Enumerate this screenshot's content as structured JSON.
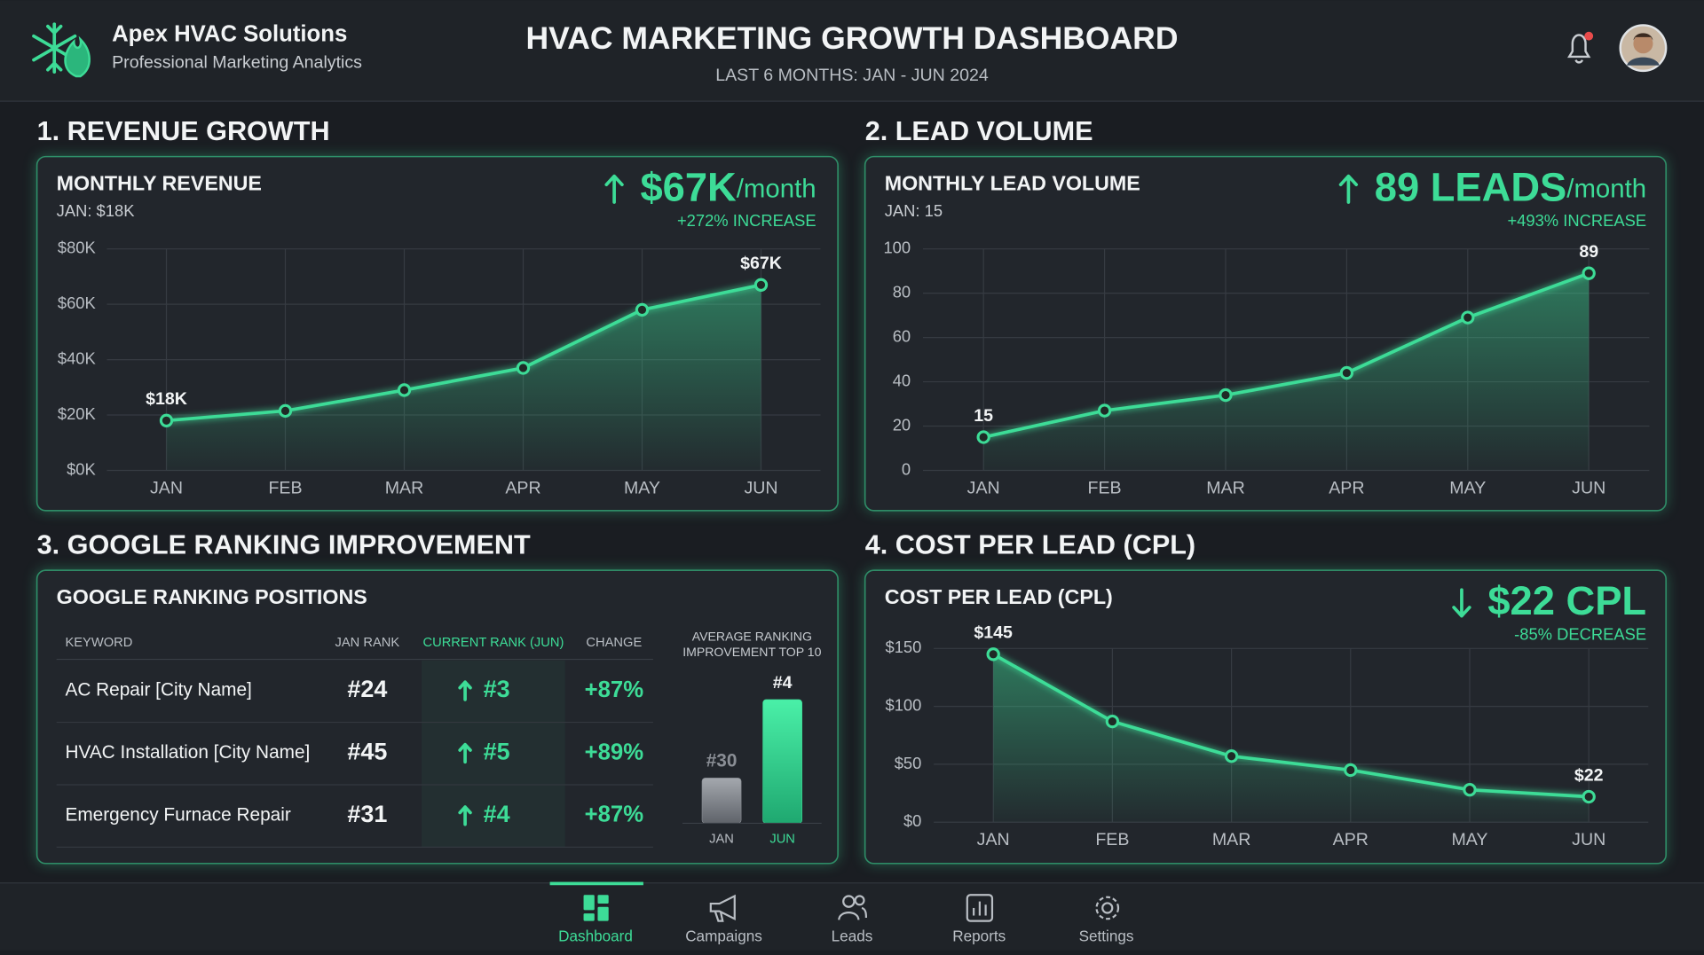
{
  "header": {
    "brand": "Apex HVAC Solutions",
    "tagline": "Professional Marketing Analytics",
    "title": "HVAC MARKETING GROWTH DASHBOARD",
    "subtitle": "LAST 6 MONTHS: JAN - JUN 2024"
  },
  "chart_data": [
    {
      "type": "line",
      "section": "1. REVENUE GROWTH",
      "title": "MONTHLY REVENUE",
      "subtitle": "JAN: $18K",
      "kpi": "$67K",
      "kpi_unit": "/month",
      "kpi_change": "+272% INCREASE",
      "trend": "up",
      "categories": [
        "JAN",
        "FEB",
        "MAR",
        "APR",
        "MAY",
        "JUN"
      ],
      "series": [
        {
          "color": "#3ddc97",
          "values": [
            18000,
            21500,
            29000,
            37000,
            58000,
            67000
          ],
          "value_labels": [
            "$18K",
            null,
            null,
            null,
            null,
            "$67K"
          ]
        }
      ],
      "ylim": [
        0,
        80000
      ],
      "yticks": [
        {
          "value": 0,
          "label": "$0K"
        },
        {
          "value": 20000,
          "label": "$20K"
        },
        {
          "value": 40000,
          "label": "$40K"
        },
        {
          "value": 60000,
          "label": "$60K"
        },
        {
          "value": 80000,
          "label": "$80K"
        }
      ],
      "grid": true
    },
    {
      "type": "line",
      "section": "2. LEAD VOLUME",
      "title": "MONTHLY LEAD VOLUME",
      "subtitle": "JAN: 15",
      "kpi": "89 LEADS",
      "kpi_unit": "/month",
      "kpi_change": "+493% INCREASE",
      "trend": "up",
      "categories": [
        "JAN",
        "FEB",
        "MAR",
        "APR",
        "MAY",
        "JUN"
      ],
      "series": [
        {
          "color": "#3ddc97",
          "values": [
            15,
            27,
            34,
            44,
            69,
            89
          ],
          "value_labels": [
            "15",
            null,
            null,
            null,
            null,
            "89"
          ]
        }
      ],
      "ylim": [
        0,
        100
      ],
      "yticks": [
        0,
        20,
        40,
        60,
        80,
        100
      ],
      "grid": true
    },
    {
      "type": "line",
      "section": "4. COST PER LEAD (CPL)",
      "title": "COST PER LEAD (CPL)",
      "kpi": "$22 CPL",
      "kpi_change": "-85% DECREASE",
      "trend": "down",
      "categories": [
        "JAN",
        "FEB",
        "MAR",
        "APR",
        "MAY",
        "JUN"
      ],
      "series": [
        {
          "color": "#3ddc97",
          "values": [
            145,
            87,
            57,
            45,
            28,
            22
          ],
          "value_labels": [
            "$145",
            null,
            null,
            null,
            null,
            "$22"
          ]
        }
      ],
      "ylim": [
        0,
        150
      ],
      "yticks": [
        {
          "value": 0,
          "label": "$0"
        },
        {
          "value": 50,
          "label": "$50"
        },
        {
          "value": 100,
          "label": "$100"
        },
        {
          "value": 150,
          "label": "$150"
        }
      ],
      "grid": true
    },
    {
      "type": "bar",
      "title": "AVERAGE RANKING IMPROVEMENT TOP 10",
      "categories": [
        "JAN",
        "JUN"
      ],
      "values": [
        30,
        4
      ],
      "value_labels": [
        "#30",
        "#4"
      ],
      "colors": [
        "#8a8e95",
        "#3ddc97"
      ],
      "ylim": [
        45,
        0
      ]
    }
  ],
  "ranking": {
    "section": "3. GOOGLE RANKING IMPROVEMENT",
    "title": "GOOGLE RANKING POSITIONS",
    "columns": [
      "KEYWORD",
      "JAN RANK",
      "CURRENT RANK (JUN)",
      "CHANGE"
    ],
    "rows": [
      [
        "AC Repair [City Name]",
        "#24",
        "#3",
        "+87%"
      ],
      [
        "HVAC Installation [City Name]",
        "#45",
        "#5",
        "+89%"
      ],
      [
        "Emergency Furnace Repair",
        "#31",
        "#4",
        "+87%"
      ]
    ]
  },
  "nav": [
    "Dashboard",
    "Campaigns",
    "Leads",
    "Reports",
    "Settings"
  ]
}
